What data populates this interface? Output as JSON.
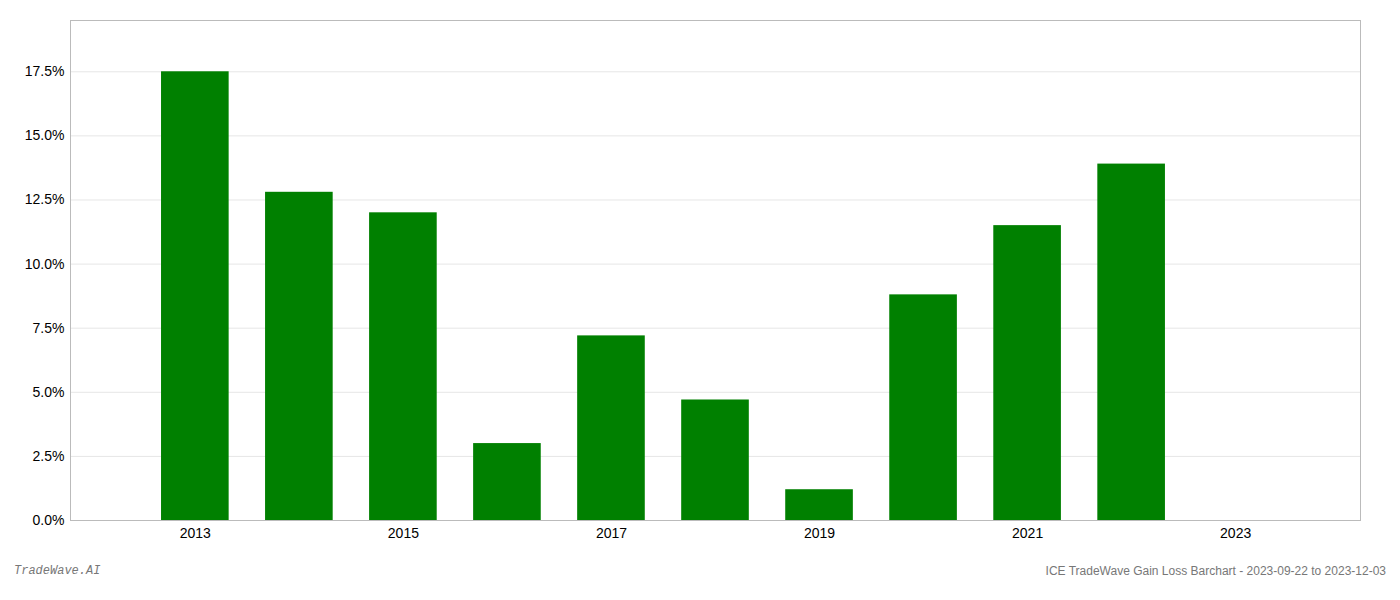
{
  "chart_data": {
    "type": "bar",
    "x": [
      2013,
      2014,
      2015,
      2016,
      2017,
      2018,
      2019,
      2020,
      2021,
      2022,
      2023
    ],
    "values": [
      0.175,
      0.128,
      0.12,
      0.03,
      0.072,
      0.047,
      0.012,
      0.088,
      0.115,
      0.139,
      null
    ],
    "color": "#008000",
    "xlim": [
      2011.8,
      2024.2
    ],
    "xticks": [
      2013,
      2015,
      2017,
      2019,
      2021,
      2023
    ],
    "ylim": [
      0,
      0.195
    ],
    "yticks": [
      {
        "value": 0.0,
        "label": "0.0%"
      },
      {
        "value": 0.025,
        "label": "2.5%"
      },
      {
        "value": 0.05,
        "label": "5.0%"
      },
      {
        "value": 0.075,
        "label": "7.5%"
      },
      {
        "value": 0.1,
        "label": "10.0%"
      },
      {
        "value": 0.125,
        "label": "12.5%"
      },
      {
        "value": 0.15,
        "label": "15.0%"
      },
      {
        "value": 0.175,
        "label": "17.5%"
      }
    ],
    "grid": true,
    "annotations": [
      "TradeWave.AI",
      "ICE TradeWave Gain Loss Barchart - 2023-09-22 to 2023-12-03"
    ]
  }
}
